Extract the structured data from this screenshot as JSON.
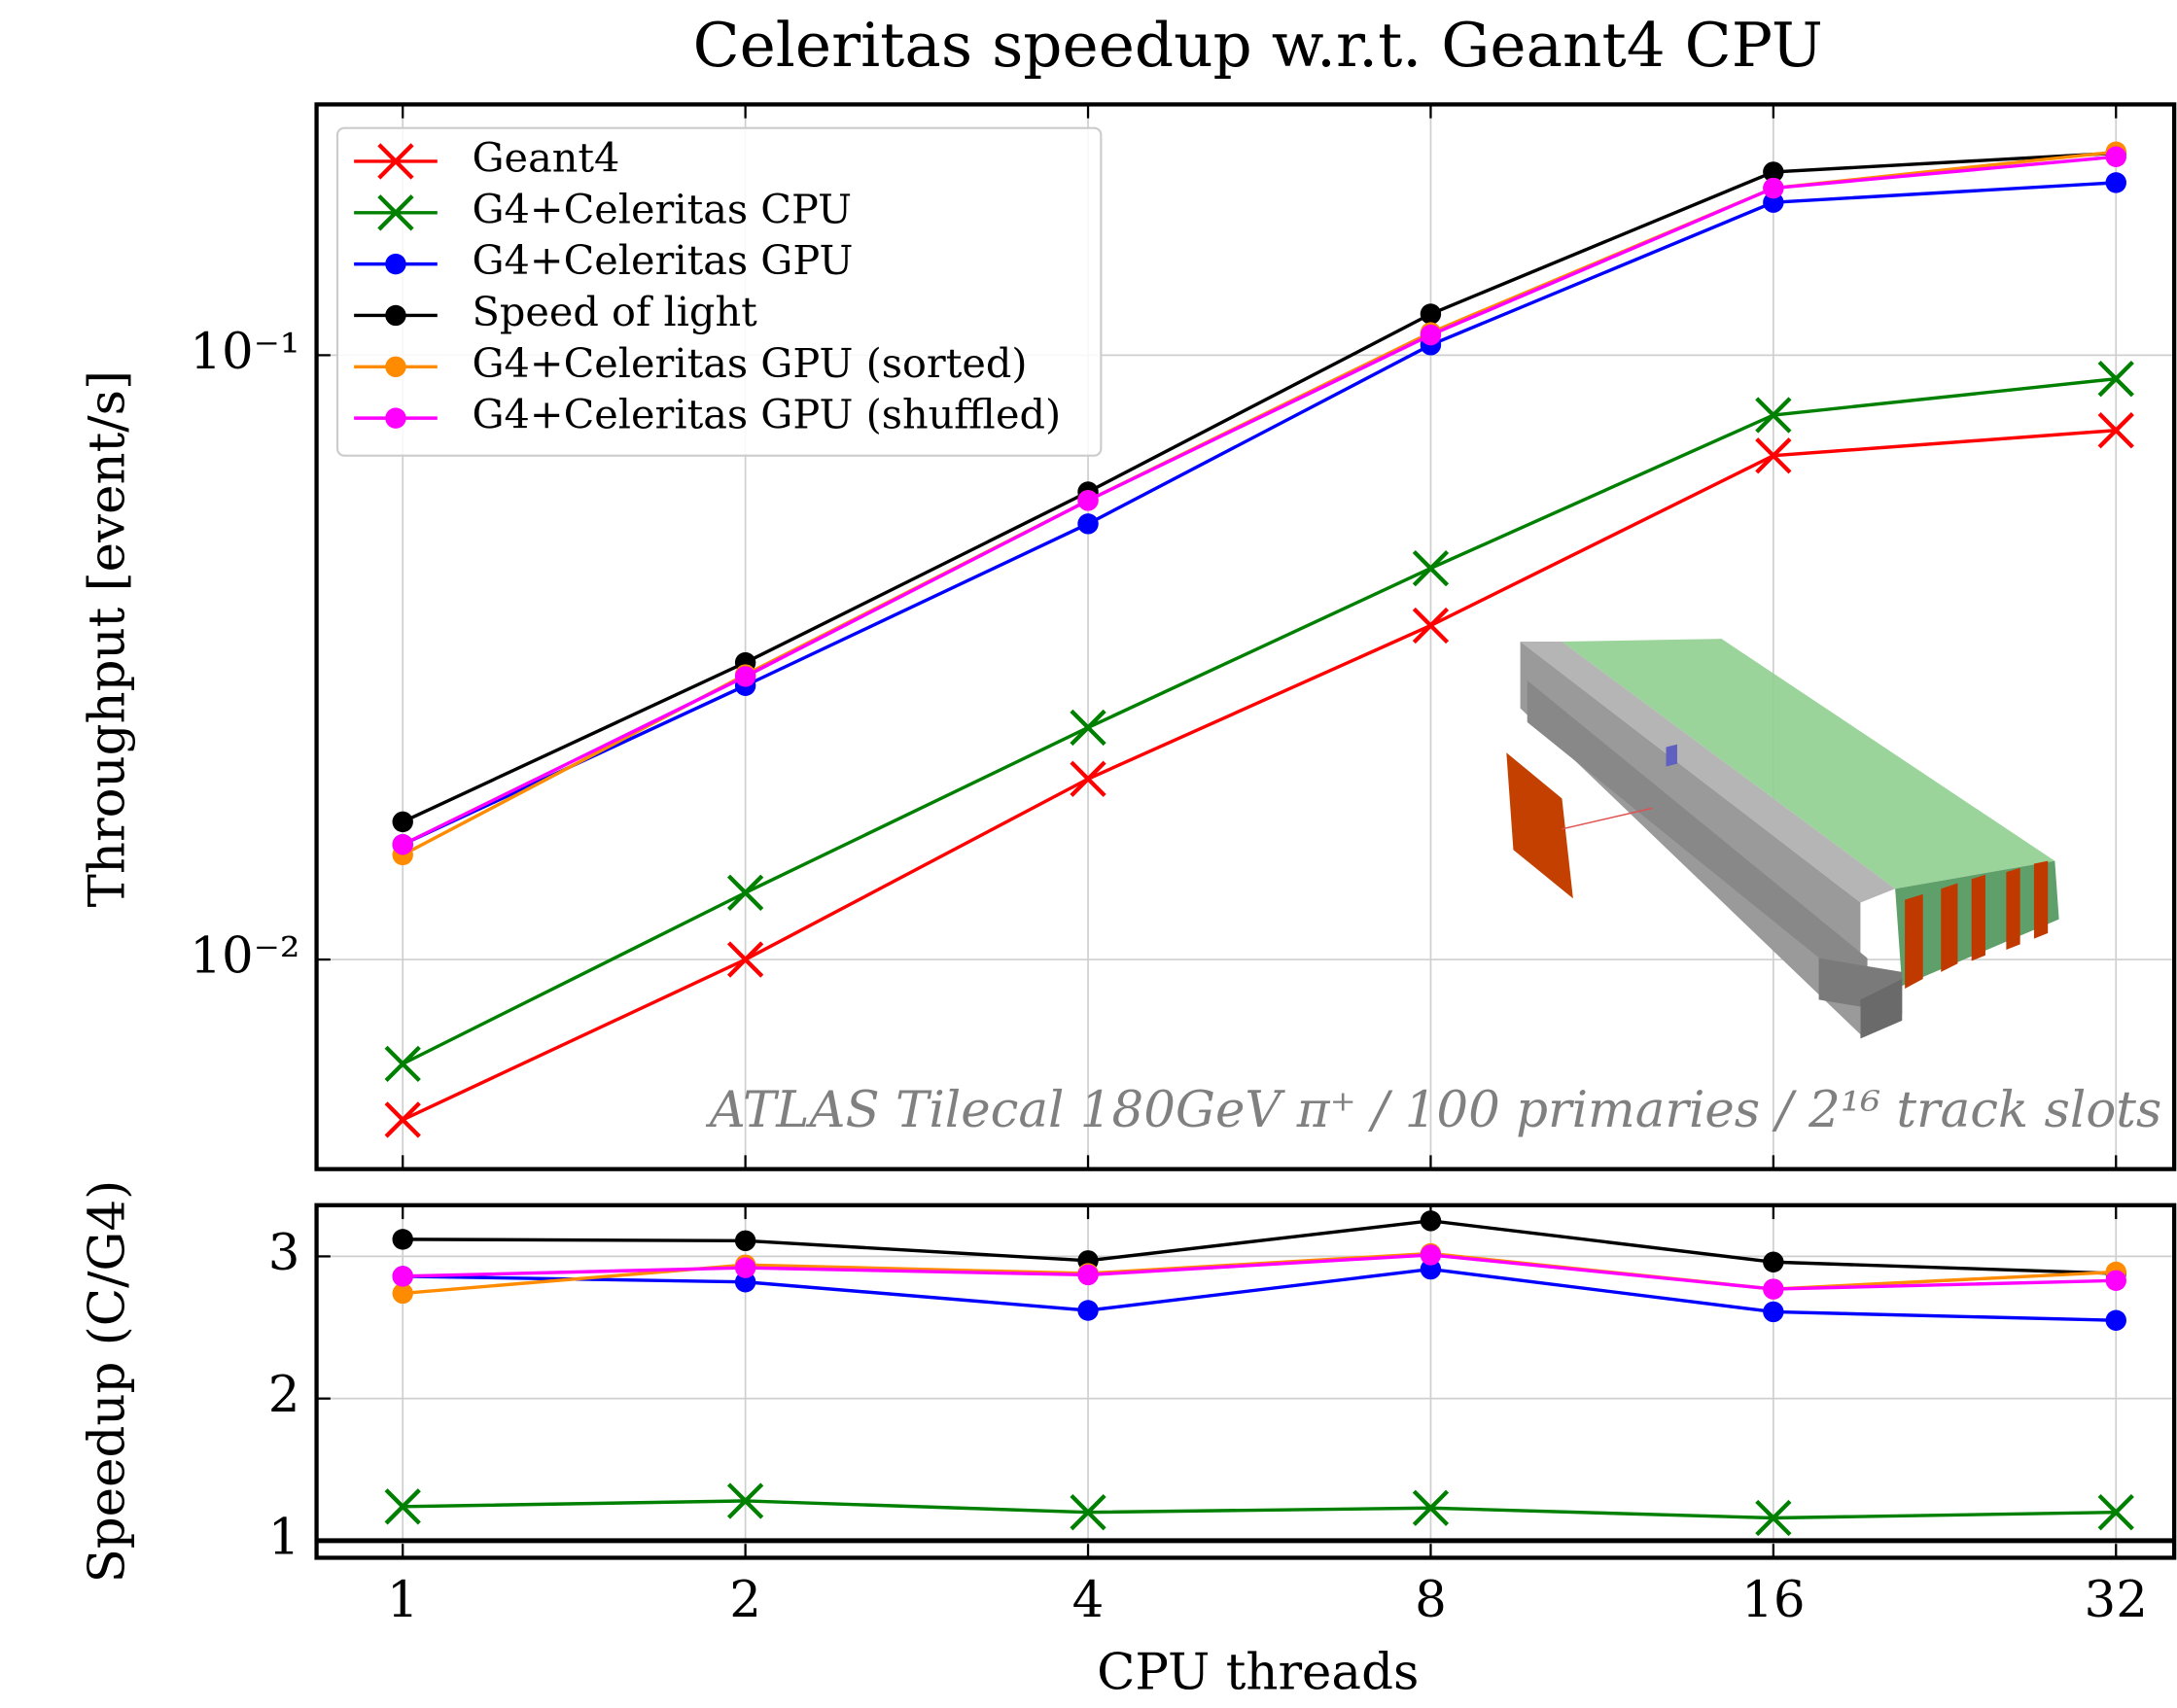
{
  "chart_data": [
    {
      "type": "line",
      "title": "Celeritas speedup w.r.t. Geant4 CPU",
      "ylabel": "Throughput [event/s]",
      "annotation": "ATLAS Tilecal 180GeV π⁺ / 100 primaries / 2¹⁶ track slots",
      "x": [
        1,
        2,
        4,
        8,
        16,
        32
      ],
      "xlim": [
        0.84,
        36
      ],
      "xticks": [
        1,
        2,
        4,
        8,
        16,
        32
      ],
      "xscale": "log",
      "ylim": [
        0.0045,
        0.26
      ],
      "yscale": "log",
      "yticks": [
        {
          "value": 0.01,
          "label": "10⁻²"
        },
        {
          "value": 0.1,
          "label": "10⁻¹"
        }
      ],
      "grid": true,
      "legend": "upper left",
      "series": [
        {
          "name": "Geant4",
          "color": "#ff0000",
          "marker": "x",
          "values": [
            0.00543,
            0.01,
            0.0199,
            0.0357,
            0.0682,
            0.0751
          ]
        },
        {
          "name": "G4+Celeritas CPU",
          "color": "#008000",
          "marker": "x",
          "values": [
            0.00672,
            0.0129,
            0.0242,
            0.0444,
            0.0796,
            0.0914
          ]
        },
        {
          "name": "G4+Celeritas GPU",
          "color": "#0000ff",
          "marker": "o",
          "values": [
            0.0155,
            0.0284,
            0.0526,
            0.104,
            0.179,
            0.193
          ]
        },
        {
          "name": "Speed of light",
          "color": "#000000",
          "marker": "o",
          "values": [
            0.0169,
            0.031,
            0.0594,
            0.117,
            0.201,
            0.216
          ]
        },
        {
          "name": "G4+Celeritas GPU (sorted)",
          "color": "#ff8c00",
          "marker": "o",
          "values": [
            0.0149,
            0.0296,
            0.0575,
            0.109,
            0.189,
            0.217
          ]
        },
        {
          "name": "G4+Celeritas GPU (shuffled)",
          "color": "#ff00ff",
          "marker": "o",
          "values": [
            0.0155,
            0.0294,
            0.0575,
            0.108,
            0.189,
            0.213
          ]
        }
      ]
    },
    {
      "type": "line",
      "xlabel": "CPU threads",
      "ylabel": "Speedup (C/G4)",
      "x": [
        1,
        2,
        4,
        8,
        16,
        32
      ],
      "xlim": [
        0.84,
        36
      ],
      "xticks": [
        1,
        2,
        4,
        8,
        16,
        32
      ],
      "xscale": "log",
      "ylim": [
        0.88,
        3.36
      ],
      "yticks": [
        1,
        2,
        3
      ],
      "yscale": "linear",
      "hline": 1,
      "grid": true,
      "series": [
        {
          "name": "G4+Celeritas CPU",
          "color": "#008000",
          "marker": "x",
          "values": [
            1.24,
            1.28,
            1.2,
            1.23,
            1.16,
            1.2
          ]
        },
        {
          "name": "G4+Celeritas GPU",
          "color": "#0000ff",
          "marker": "o",
          "values": [
            2.86,
            2.82,
            2.62,
            2.91,
            2.61,
            2.55
          ]
        },
        {
          "name": "Speed of light",
          "color": "#000000",
          "marker": "o",
          "values": [
            3.12,
            3.11,
            2.97,
            3.25,
            2.96,
            2.88
          ]
        },
        {
          "name": "G4+Celeritas GPU (sorted)",
          "color": "#ff8c00",
          "marker": "o",
          "values": [
            2.74,
            2.94,
            2.88,
            3.02,
            2.77,
            2.89
          ]
        },
        {
          "name": "G4+Celeritas GPU (shuffled)",
          "color": "#ff00ff",
          "marker": "o",
          "values": [
            2.86,
            2.92,
            2.87,
            3.01,
            2.77,
            2.83
          ]
        }
      ]
    }
  ]
}
